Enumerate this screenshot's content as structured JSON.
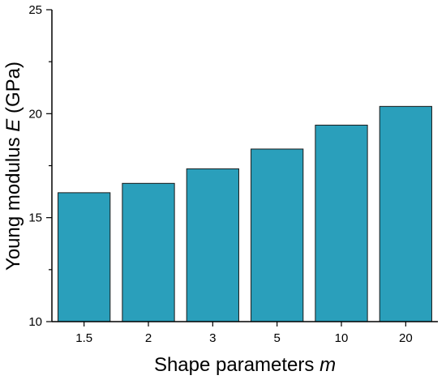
{
  "chart_data": {
    "type": "bar",
    "categories": [
      "1.5",
      "2",
      "3",
      "5",
      "10",
      "20"
    ],
    "values": [
      16.2,
      16.65,
      17.35,
      18.3,
      19.45,
      20.35
    ],
    "ylim": [
      10,
      25
    ],
    "yticks": [
      10,
      15,
      20,
      25
    ],
    "ylabel_prefix": "Young modulus ",
    "ylabel_symbol": "E",
    "ylabel_suffix": " (GPa)",
    "xlabel_prefix": "Shape parameters ",
    "xlabel_symbol": "m",
    "grid": false,
    "bar_color": "#2a9fbb",
    "bar_edge_color": "#1a1a1a"
  }
}
